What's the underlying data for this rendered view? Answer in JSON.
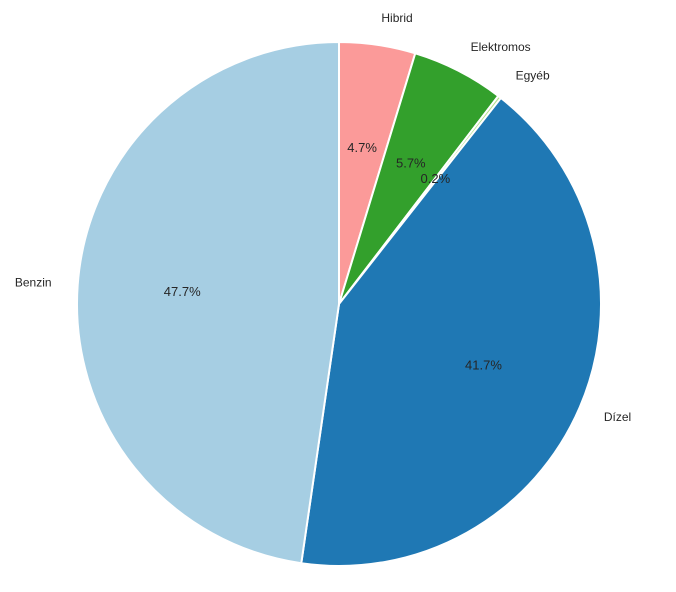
{
  "chart_data": {
    "type": "pie",
    "title": "",
    "start_angle_deg": 0,
    "direction": "clockwise",
    "slices": [
      {
        "label": "Hibrid",
        "value": 4.7,
        "pct_label": "4.7%",
        "color": "#fb9a99"
      },
      {
        "label": "Elektromos",
        "value": 5.7,
        "pct_label": "5.7%",
        "color": "#33a02c"
      },
      {
        "label": "Egyéb",
        "value": 0.2,
        "pct_label": "0.2%",
        "color": "#b2df8a"
      },
      {
        "label": "Dízel",
        "value": 41.7,
        "pct_label": "41.7%",
        "color": "#1f78b4"
      },
      {
        "label": "Benzin",
        "value": 47.7,
        "pct_label": "47.7%",
        "color": "#a6cee3"
      }
    ]
  }
}
